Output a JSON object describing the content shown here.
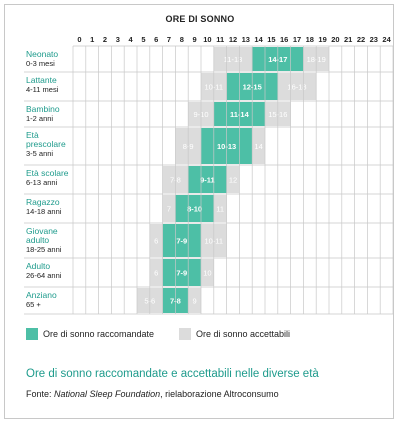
{
  "chart_data": {
    "type": "range-bar",
    "title": "ORE DI SONNO",
    "x_ticks": [
      0,
      1,
      2,
      3,
      4,
      5,
      6,
      7,
      8,
      9,
      10,
      11,
      12,
      13,
      14,
      15,
      16,
      17,
      18,
      19,
      20,
      21,
      22,
      23,
      24
    ],
    "xlim": [
      0,
      24
    ],
    "grid": true,
    "categories": [
      {
        "name": "Neonato",
        "sub": "0-3 mesi",
        "recommended": [
          14,
          17
        ],
        "recommended_label": "14-17",
        "acceptable_low": [
          11,
          13
        ],
        "acceptable_low_label": "11-13",
        "acceptable_high": [
          18,
          19
        ],
        "acceptable_high_label": "18-19"
      },
      {
        "name": "Lattante",
        "sub": "4-11 mesi",
        "recommended": [
          12,
          15
        ],
        "recommended_label": "12-15",
        "acceptable_low": [
          10,
          11
        ],
        "acceptable_low_label": "10-11",
        "acceptable_high": [
          16,
          18
        ],
        "acceptable_high_label": "16-18"
      },
      {
        "name": "Bambino",
        "sub": "1-2 anni",
        "recommended": [
          11,
          14
        ],
        "recommended_label": "11-14",
        "acceptable_low": [
          9,
          10
        ],
        "acceptable_low_label": "9-10",
        "acceptable_high": [
          15,
          16
        ],
        "acceptable_high_label": "15-16"
      },
      {
        "name": "Età prescolare",
        "sub": "3-5 anni",
        "recommended": [
          10,
          13
        ],
        "recommended_label": "10-13",
        "acceptable_low": [
          8,
          9
        ],
        "acceptable_low_label": "8-9",
        "acceptable_high": [
          14,
          14
        ],
        "acceptable_high_label": "14"
      },
      {
        "name": "Età scolare",
        "sub": "6-13 anni",
        "recommended": [
          9,
          11
        ],
        "recommended_label": "9-11",
        "acceptable_low": [
          7,
          8
        ],
        "acceptable_low_label": "7-8",
        "acceptable_high": [
          12,
          12
        ],
        "acceptable_high_label": "12"
      },
      {
        "name": "Ragazzo",
        "sub": "14-18 anni",
        "recommended": [
          8,
          10
        ],
        "recommended_label": "8-10",
        "acceptable_low": [
          7,
          7
        ],
        "acceptable_low_label": "7",
        "acceptable_high": [
          11,
          11
        ],
        "acceptable_high_label": "11"
      },
      {
        "name": "Giovane adulto",
        "sub": "18-25 anni",
        "recommended": [
          7,
          9
        ],
        "recommended_label": "7-9",
        "acceptable_low": [
          6,
          6
        ],
        "acceptable_low_label": "6",
        "acceptable_high": [
          10,
          11
        ],
        "acceptable_high_label": "10-11"
      },
      {
        "name": "Adulto",
        "sub": "26-64 anni",
        "recommended": [
          7,
          9
        ],
        "recommended_label": "7-9",
        "acceptable_low": [
          6,
          6
        ],
        "acceptable_low_label": "6",
        "acceptable_high": [
          10,
          10
        ],
        "acceptable_high_label": "10"
      },
      {
        "name": "Anziano",
        "sub": "65 +",
        "recommended": [
          7,
          8
        ],
        "recommended_label": "7-8",
        "acceptable_low": [
          5,
          6
        ],
        "acceptable_low_label": "5-6",
        "acceptable_high": [
          9,
          9
        ],
        "acceptable_high_label": "9"
      }
    ],
    "legend": {
      "recommended": "Ore di sonno raccomandate",
      "acceptable": "Ore di sonno accettabili"
    },
    "colors": {
      "recommended": "#4dbfa6",
      "acceptable": "#dcdcdc",
      "category_text": "#1e9b8c",
      "grid": "#c8c8c8"
    }
  },
  "caption": "Ore di sonno raccomandate e accettabili nelle diverse età",
  "source": {
    "prefix": "Fonte: ",
    "publisher": "National Sleep Foundation",
    "suffix": ", rielaborazione Altroconsumo"
  }
}
